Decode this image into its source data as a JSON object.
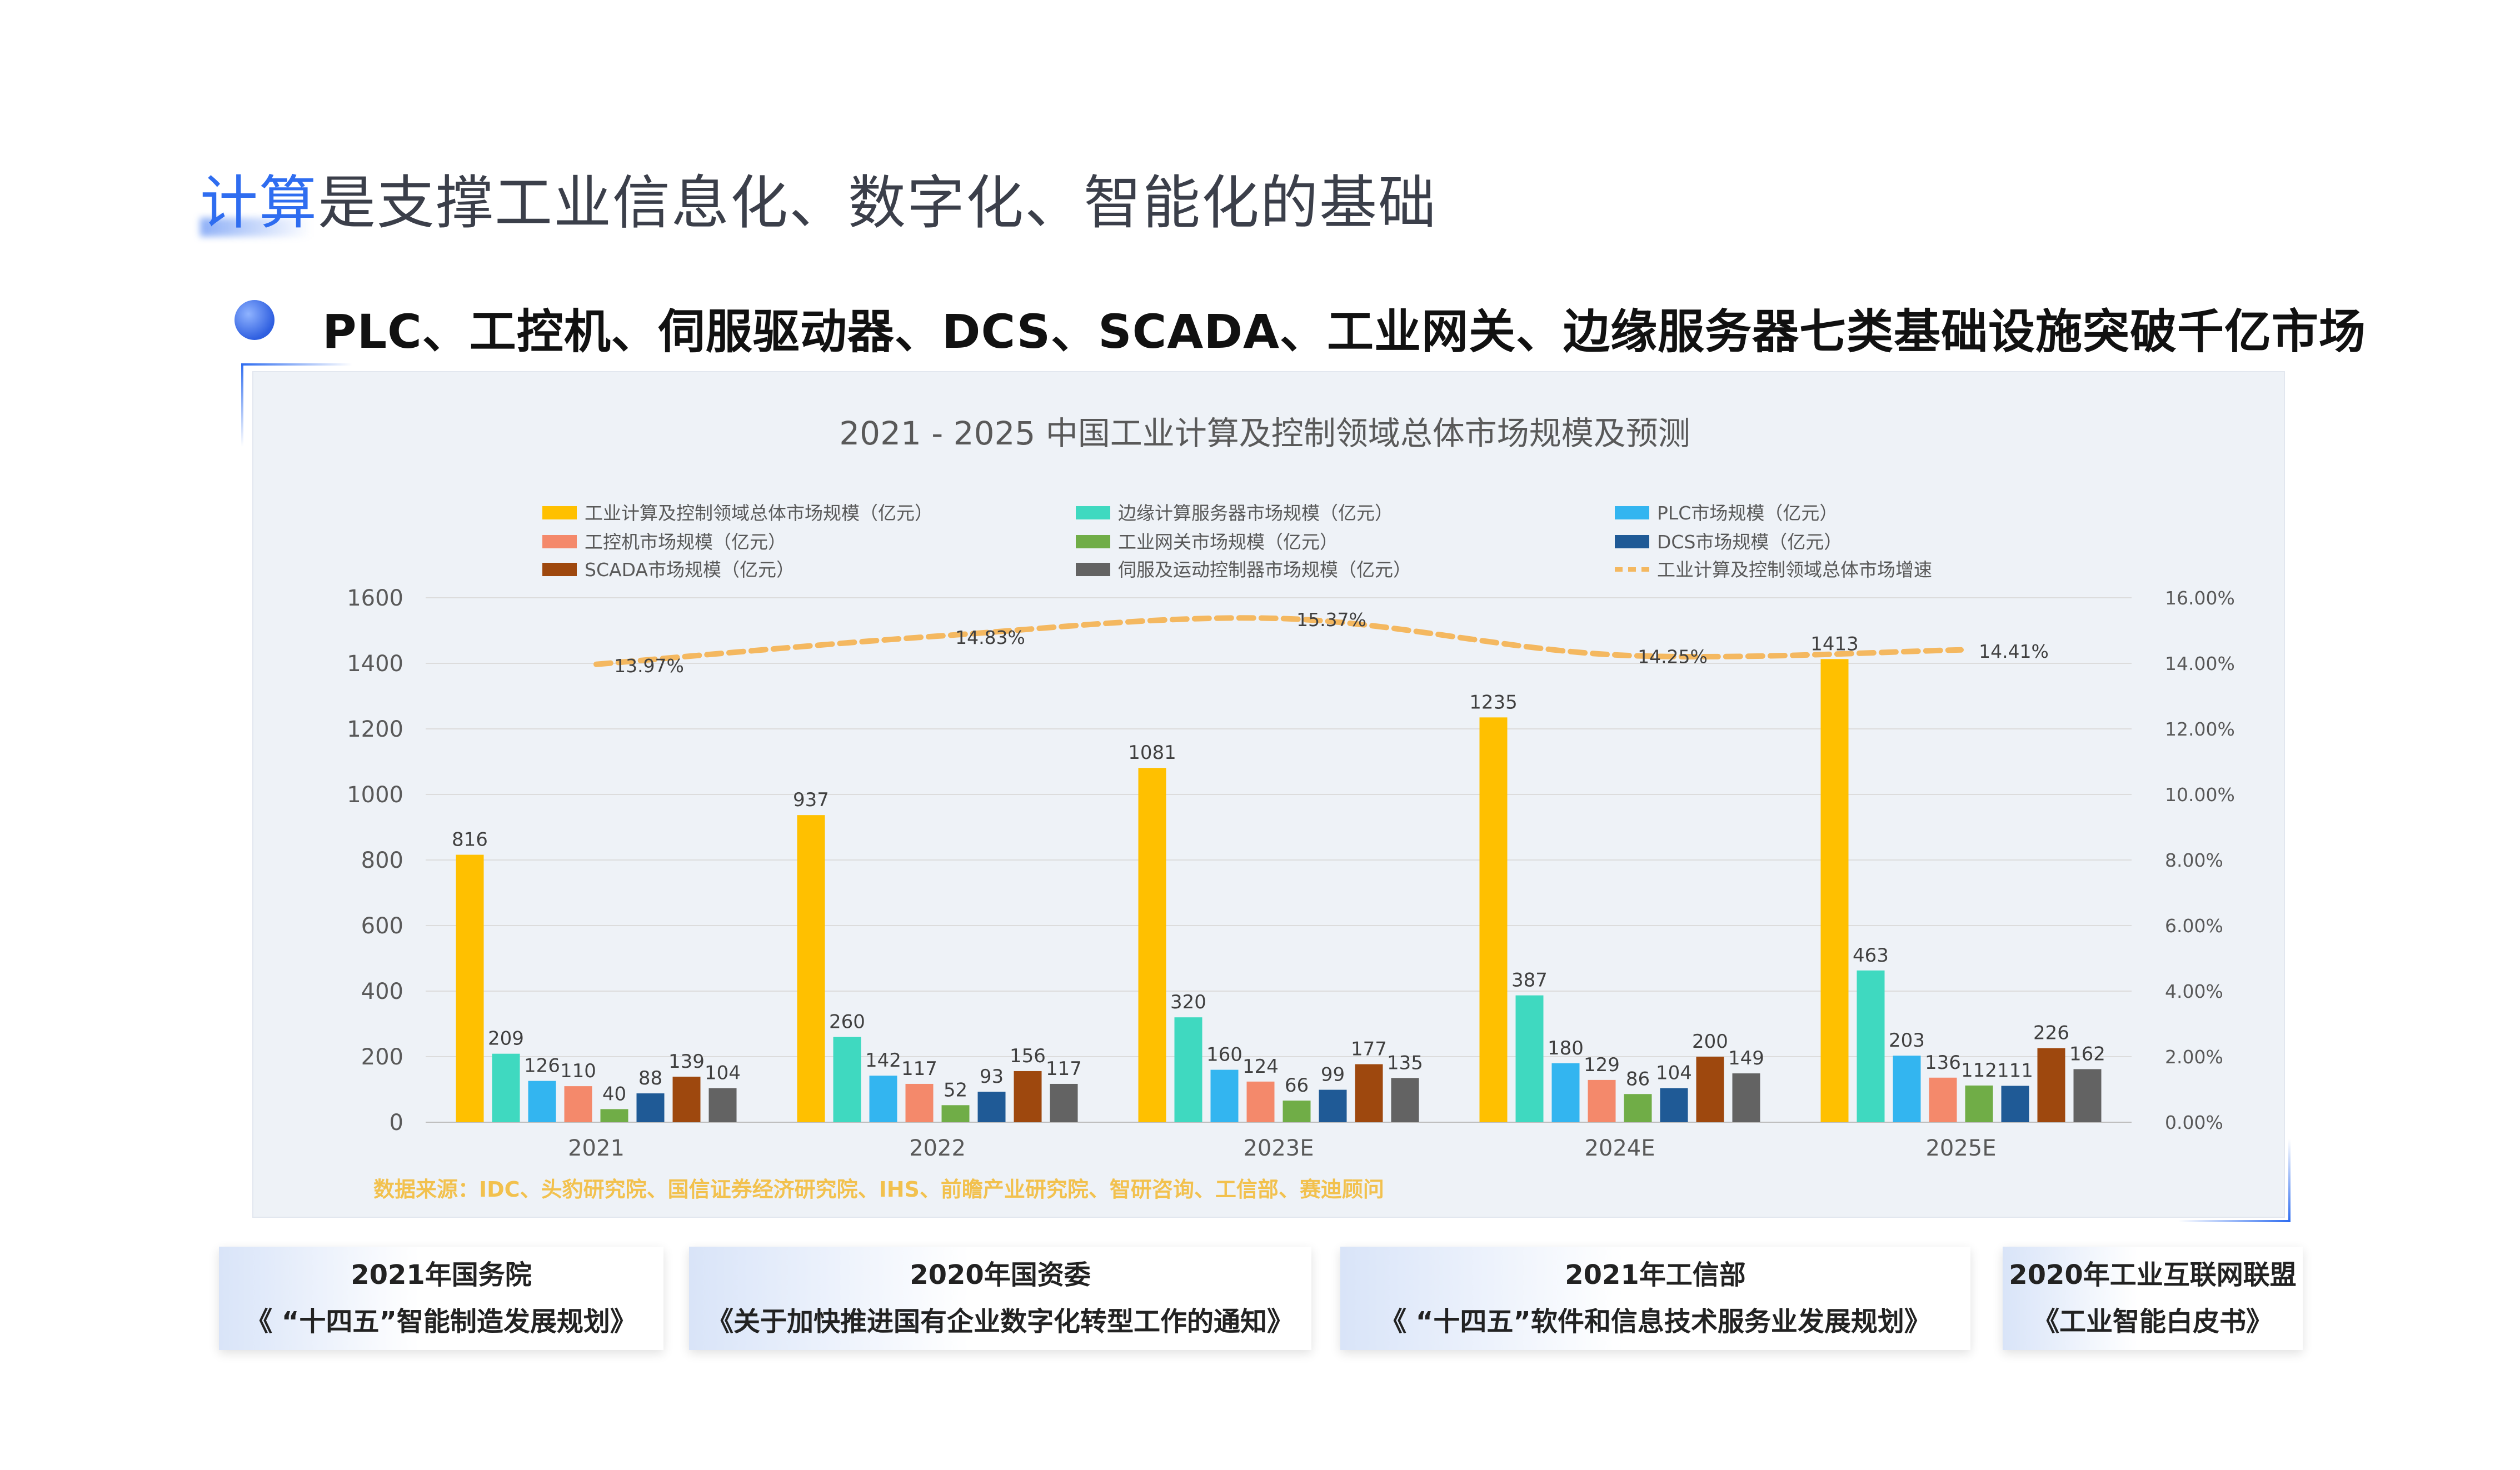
{
  "page": {
    "title_accent": "计算",
    "title_rest": "是支撑工业信息化、数字化、智能化的基础",
    "subtitle": "PLC、工控机、伺服驱动器、DCS、SCADA、工业网关、边缘服务器七类基础设施突破千亿市场",
    "source": "数据来源：IDC、头豹研究院、国信证券经济研究院、IHS、前瞻产业研究院、智研咨询、工信部、赛迪顾问"
  },
  "cards": [
    {
      "line1": "2021年国务院",
      "line2": "《 “十四五”智能制造发展规划》"
    },
    {
      "line1": "2020年国资委",
      "line2": "《关于加快推进国有企业数字化转型工作的通知》"
    },
    {
      "line1": "2021年工信部",
      "line2": "《 “十四五”软件和信息技术服务业发展规划》"
    },
    {
      "line1": "2020年工业互联网联盟",
      "line2": "《工业智能白皮书》"
    }
  ],
  "chart_data": {
    "type": "bar",
    "title": "2021 - 2025 中国工业计算及控制领域总体市场规模及预测",
    "categories": [
      "2021",
      "2022",
      "2023E",
      "2024E",
      "2025E"
    ],
    "ylim": [
      0,
      1600
    ],
    "yticks": [
      "0",
      "200",
      "400",
      "600",
      "800",
      "1000",
      "1200",
      "1400",
      "1600"
    ],
    "y2lim": [
      0,
      16
    ],
    "y2ticks": [
      "0.00%",
      "2.00%",
      "4.00%",
      "6.00%",
      "8.00%",
      "10.00%",
      "12.00%",
      "14.00%",
      "16.00%"
    ],
    "grid": true,
    "legend_position": "top",
    "series": [
      {
        "name": "工业计算及控制领域总体市场规模（亿元）",
        "color": "#ffc000",
        "values": [
          816,
          937,
          1081,
          1235,
          1413
        ]
      },
      {
        "name": "边缘计算服务器市场规模（亿元）",
        "color": "#3fd9c0",
        "values": [
          209,
          260,
          320,
          387,
          463
        ]
      },
      {
        "name": "PLC市场规模（亿元）",
        "color": "#33b5f0",
        "values": [
          126,
          142,
          160,
          180,
          203
        ]
      },
      {
        "name": "工控机市场规模（亿元）",
        "color": "#f4896b",
        "values": [
          110,
          117,
          124,
          129,
          136
        ]
      },
      {
        "name": "工业网关市场规模（亿元）",
        "color": "#70ad47",
        "values": [
          40,
          52,
          66,
          86,
          112
        ]
      },
      {
        "name": "DCS市场规模（亿元）",
        "color": "#1f5a96",
        "values": [
          88,
          93,
          99,
          104,
          111
        ]
      },
      {
        "name": "SCADA市场规模（亿元）",
        "color": "#9e480e",
        "values": [
          139,
          156,
          177,
          200,
          226
        ]
      },
      {
        "name": "伺服及运动控制器市场规模（亿元）",
        "color": "#636363",
        "values": [
          104,
          117,
          135,
          149,
          162
        ]
      }
    ],
    "line_series": {
      "name": "工业计算及控制领域总体市场增速",
      "color": "#f4b860",
      "values": [
        13.97,
        14.83,
        15.37,
        14.25,
        14.41
      ],
      "labels": [
        "13.97%",
        "14.83%",
        "15.37%",
        "14.25%",
        "14.41%"
      ]
    }
  }
}
